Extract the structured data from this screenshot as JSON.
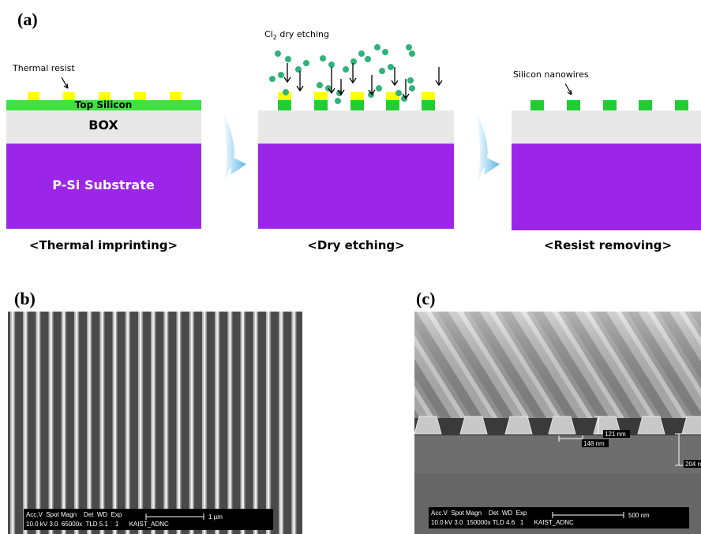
{
  "panel_a": {
    "label": "(a)",
    "thermal_resist": "Thermal resist",
    "top_silicon": "Top Silicon",
    "box": "BOX",
    "substrate": "P-Si Substrate",
    "etch_label": {
      "prefix": "Cl",
      "subscript": "2",
      "suffix": " dry etching"
    },
    "nanowires": "Silicon nanowires",
    "captions": [
      "<Thermal imprinting>",
      "<Dry etching>",
      "<Resist removing>"
    ]
  },
  "panel_b": {
    "label": "(b)",
    "info_header": "Acc.V  Spot Magn    Det  WD  Exp",
    "info_values": "10.0 kV 3.0  65000x  TLD 5.1    1      KAIST_ADNC",
    "scale_bar": "1 µm"
  },
  "panel_c": {
    "label": "(c)",
    "info_header": "Acc.V  Spot Magn    Det  WD  Exp",
    "info_values": "10.0 kV 3.0  150000x TLD 4.6   1      KAIST_ADNC",
    "scale_bar": "500 nm",
    "measurements": [
      "121 nm",
      "148 nm",
      "204 n"
    ]
  }
}
